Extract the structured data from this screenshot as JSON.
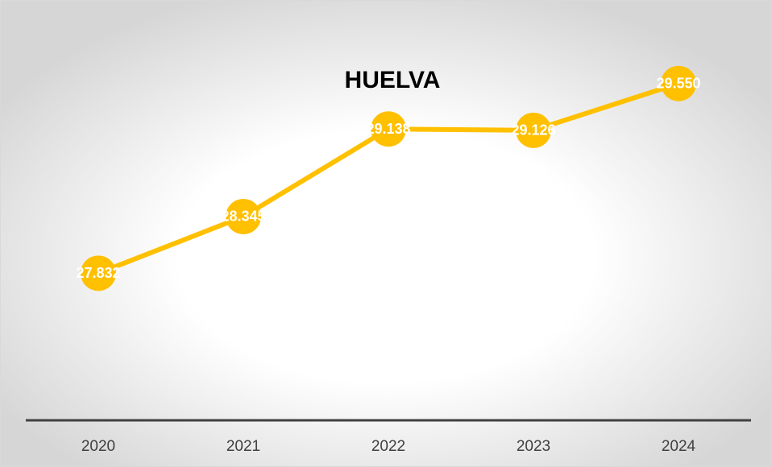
{
  "chart_data": {
    "type": "line",
    "title": "HUELVA",
    "categories": [
      "2020",
      "2021",
      "2022",
      "2023",
      "2024"
    ],
    "series": [
      {
        "name": "HUELVA",
        "color": "#ffc000",
        "values": [
          27832,
          28345,
          29138,
          29126,
          29550
        ],
        "value_labels": [
          "27.832",
          "28.345",
          "29.138",
          "29.126",
          "29.550"
        ]
      }
    ],
    "ylim": [
      26500,
      30000
    ]
  }
}
